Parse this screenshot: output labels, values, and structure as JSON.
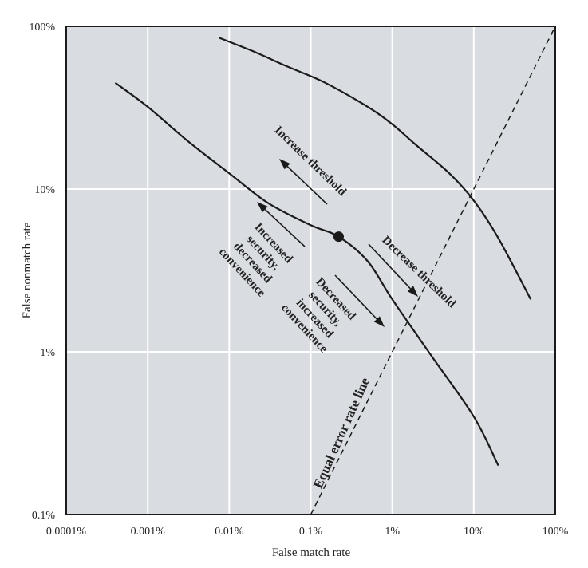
{
  "chart_data": {
    "type": "line",
    "title": "",
    "xlabel": "False match rate",
    "ylabel": "False nonmatch rate",
    "xscale": "log",
    "yscale": "log",
    "xlim": [
      0.0001,
      100
    ],
    "ylim": [
      0.1,
      100
    ],
    "x_ticks": [
      {
        "value": 0.0001,
        "label": "0.0001%"
      },
      {
        "value": 0.001,
        "label": "0.001%"
      },
      {
        "value": 0.01,
        "label": "0.01%"
      },
      {
        "value": 0.1,
        "label": "0.1%"
      },
      {
        "value": 1,
        "label": "1%"
      },
      {
        "value": 10,
        "label": "10%"
      },
      {
        "value": 100,
        "label": "100%"
      }
    ],
    "y_ticks": [
      {
        "value": 0.1,
        "label": "0.1%"
      },
      {
        "value": 1,
        "label": "1%"
      },
      {
        "value": 10,
        "label": "10%"
      },
      {
        "value": 100,
        "label": "100%"
      }
    ],
    "grid": true,
    "colors": {
      "plot_bg": "#d9dde1",
      "grid": "#ffffff",
      "line": "#1a1a1a"
    },
    "series": [
      {
        "name": "curve-lower",
        "style": "solid",
        "x": [
          0.0004,
          0.001,
          0.003,
          0.01,
          0.03,
          0.1,
          0.22,
          0.5,
          1,
          3,
          10,
          20
        ],
        "y": [
          45,
          32,
          20,
          12.5,
          8.2,
          6,
          5.1,
          3.6,
          2.1,
          0.95,
          0.4,
          0.2
        ]
      },
      {
        "name": "curve-upper",
        "style": "solid",
        "x": [
          0.0075,
          0.02,
          0.05,
          0.15,
          0.5,
          1,
          2,
          5,
          10,
          20,
          50
        ],
        "y": [
          85,
          70,
          57,
          45,
          32,
          25,
          18.5,
          12.5,
          8.5,
          5,
          2.1
        ]
      },
      {
        "name": "Equal error rate line",
        "style": "dashed",
        "x": [
          0.1,
          100
        ],
        "y": [
          0.1,
          100
        ]
      }
    ],
    "points": [
      {
        "name": "operating-point",
        "x": 0.22,
        "y": 5.1
      }
    ],
    "annotations": {
      "increase_threshold": "Increase threshold",
      "decrease_threshold": "Decrease threshold",
      "increased_security": [
        "Increased",
        "security,",
        "decreased",
        "convenience"
      ],
      "decreased_security": [
        "Decreased",
        "security,",
        "increased",
        "convenience"
      ],
      "eer_line": "Equal error rate line"
    }
  }
}
